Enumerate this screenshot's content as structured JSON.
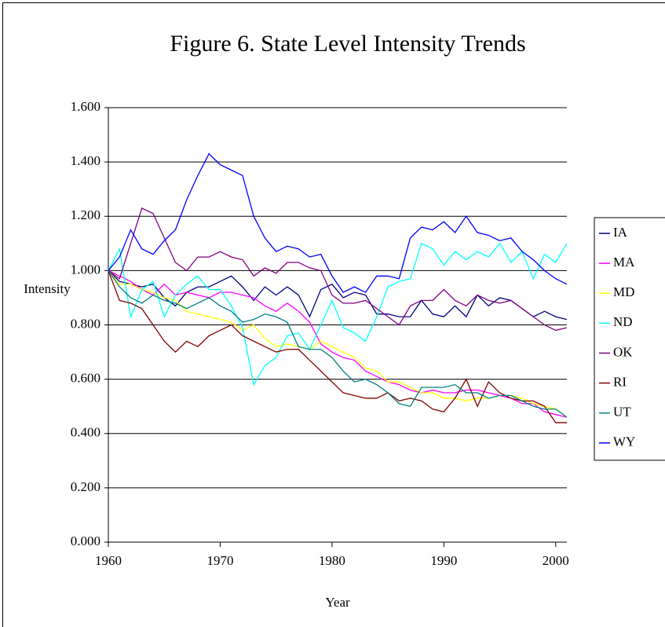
{
  "chart_data": {
    "type": "line",
    "title": "Figure 6. State Level Intensity Trends",
    "x_label": "Year",
    "y_label": "Intensity",
    "x": [
      1960,
      1961,
      1962,
      1963,
      1964,
      1965,
      1966,
      1967,
      1968,
      1969,
      1970,
      1971,
      1972,
      1973,
      1974,
      1975,
      1976,
      1977,
      1978,
      1979,
      1980,
      1981,
      1982,
      1983,
      1984,
      1985,
      1986,
      1987,
      1988,
      1989,
      1990,
      1991,
      1992,
      1993,
      1994,
      1995,
      1996,
      1997,
      1998,
      1999,
      2000,
      2001
    ],
    "xlim": [
      1960,
      2001
    ],
    "xticks": [
      1960,
      1970,
      1980,
      1990,
      2000
    ],
    "ylim": [
      0,
      1.6
    ],
    "yticks": [
      {
        "value": 0,
        "label": "0.000"
      },
      {
        "value": 0.2,
        "label": "0.200"
      },
      {
        "value": 0.4,
        "label": "0.400"
      },
      {
        "value": 0.6,
        "label": "0.600"
      },
      {
        "value": 0.8,
        "label": "0.800"
      },
      {
        "value": 1.0,
        "label": "1.000"
      },
      {
        "value": 1.2,
        "label": "1.200"
      },
      {
        "value": 1.4,
        "label": "1.400"
      },
      {
        "value": 1.6,
        "label": "1.600"
      }
    ],
    "grid": true,
    "legend": "right",
    "series": [
      {
        "name": "IA",
        "color": "#000080",
        "values": [
          1.0,
          0.96,
          0.95,
          0.94,
          0.95,
          0.9,
          0.87,
          0.92,
          0.94,
          0.94,
          0.96,
          0.98,
          0.94,
          0.89,
          0.94,
          0.91,
          0.94,
          0.91,
          0.83,
          0.93,
          0.95,
          0.9,
          0.92,
          0.91,
          0.84,
          0.84,
          0.83,
          0.83,
          0.89,
          0.84,
          0.83,
          0.87,
          0.83,
          0.91,
          0.87,
          0.9,
          0.89,
          0.86,
          0.83,
          0.85,
          0.83,
          0.82
        ]
      },
      {
        "name": "MA",
        "color": "#ff00ff",
        "values": [
          1.0,
          0.98,
          0.96,
          0.93,
          0.91,
          0.95,
          0.91,
          0.92,
          0.91,
          0.9,
          0.92,
          0.92,
          0.91,
          0.9,
          0.87,
          0.85,
          0.88,
          0.85,
          0.81,
          0.73,
          0.7,
          0.68,
          0.67,
          0.63,
          0.61,
          0.59,
          0.58,
          0.56,
          0.55,
          0.56,
          0.55,
          0.55,
          0.56,
          0.56,
          0.55,
          0.54,
          0.53,
          0.51,
          0.51,
          0.48,
          0.47,
          0.46
        ]
      },
      {
        "name": "MD",
        "color": "#ffff00",
        "values": [
          1.0,
          0.95,
          0.95,
          0.93,
          0.92,
          0.9,
          0.89,
          0.85,
          0.84,
          0.83,
          0.82,
          0.81,
          0.78,
          0.8,
          0.75,
          0.72,
          0.73,
          0.72,
          0.71,
          0.74,
          0.72,
          0.7,
          0.68,
          0.64,
          0.63,
          0.59,
          0.59,
          0.57,
          0.55,
          0.55,
          0.53,
          0.53,
          0.52,
          0.53,
          0.53,
          0.54,
          0.54,
          0.53,
          0.51,
          0.5,
          0.49,
          0.46
        ]
      },
      {
        "name": "ND",
        "color": "#00ffff",
        "values": [
          1.0,
          1.08,
          0.83,
          0.93,
          0.96,
          0.83,
          0.91,
          0.95,
          0.98,
          0.93,
          0.93,
          0.87,
          0.79,
          0.58,
          0.65,
          0.68,
          0.76,
          0.77,
          0.71,
          0.8,
          0.89,
          0.79,
          0.77,
          0.74,
          0.83,
          0.94,
          0.96,
          0.97,
          1.1,
          1.08,
          1.02,
          1.07,
          1.04,
          1.07,
          1.05,
          1.1,
          1.03,
          1.07,
          0.97,
          1.06,
          1.03,
          1.1
        ]
      },
      {
        "name": "OK",
        "color": "#800080",
        "values": [
          1.0,
          0.97,
          1.1,
          1.23,
          1.21,
          1.12,
          1.03,
          1.0,
          1.05,
          1.05,
          1.07,
          1.05,
          1.04,
          0.98,
          1.01,
          0.99,
          1.03,
          1.03,
          1.01,
          1.0,
          0.91,
          0.88,
          0.88,
          0.89,
          0.86,
          0.83,
          0.8,
          0.87,
          0.89,
          0.89,
          0.93,
          0.89,
          0.87,
          0.91,
          0.89,
          0.88,
          0.89,
          0.86,
          0.83,
          0.8,
          0.78,
          0.79
        ]
      },
      {
        "name": "RI",
        "color": "#800000",
        "values": [
          1.0,
          0.89,
          0.88,
          0.86,
          0.8,
          0.74,
          0.7,
          0.74,
          0.72,
          0.76,
          0.78,
          0.8,
          0.76,
          0.74,
          0.72,
          0.7,
          0.71,
          0.71,
          0.67,
          0.63,
          0.59,
          0.55,
          0.54,
          0.53,
          0.53,
          0.55,
          0.52,
          0.53,
          0.52,
          0.49,
          0.48,
          0.53,
          0.6,
          0.5,
          0.59,
          0.55,
          0.53,
          0.52,
          0.52,
          0.5,
          0.44,
          0.44
        ]
      },
      {
        "name": "UT",
        "color": "#008080",
        "values": [
          1.0,
          0.94,
          0.9,
          0.88,
          0.91,
          0.89,
          0.88,
          0.86,
          0.88,
          0.9,
          0.87,
          0.85,
          0.81,
          0.82,
          0.84,
          0.83,
          0.81,
          0.72,
          0.71,
          0.71,
          0.68,
          0.63,
          0.59,
          0.6,
          0.58,
          0.55,
          0.51,
          0.5,
          0.57,
          0.57,
          0.57,
          0.58,
          0.55,
          0.55,
          0.53,
          0.54,
          0.54,
          0.52,
          0.5,
          0.49,
          0.49,
          0.46
        ]
      },
      {
        "name": "WY",
        "color": "#0000ff",
        "values": [
          1.0,
          1.05,
          1.15,
          1.08,
          1.06,
          1.11,
          1.15,
          1.26,
          1.35,
          1.43,
          1.39,
          1.37,
          1.35,
          1.2,
          1.12,
          1.07,
          1.09,
          1.08,
          1.05,
          1.06,
          0.98,
          0.92,
          0.94,
          0.92,
          0.98,
          0.98,
          0.97,
          1.12,
          1.16,
          1.15,
          1.18,
          1.14,
          1.2,
          1.14,
          1.13,
          1.11,
          1.12,
          1.07,
          1.04,
          1.0,
          0.97,
          0.95
        ]
      }
    ]
  }
}
